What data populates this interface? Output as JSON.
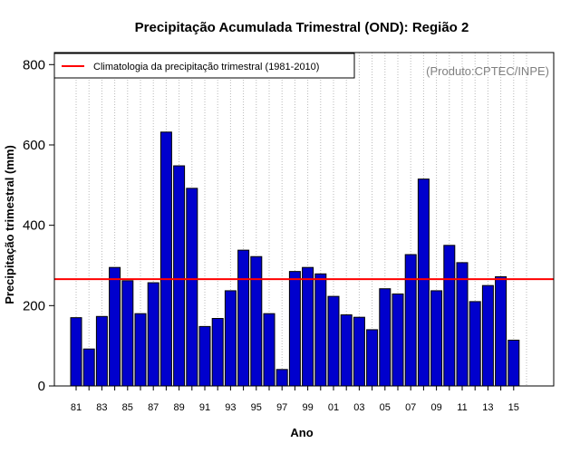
{
  "chart_data": {
    "type": "bar",
    "title": "Precipitação Acumulada Trimestral (OND): Região 2",
    "xlabel": "Ano",
    "ylabel": "Precipitação trimestral (mm)",
    "credit": "(Produto:CPTEC/INPE)",
    "categories": [
      "81",
      "82",
      "83",
      "84",
      "85",
      "86",
      "87",
      "88",
      "89",
      "90",
      "91",
      "92",
      "93",
      "94",
      "95",
      "96",
      "97",
      "98",
      "99",
      "00",
      "01",
      "02",
      "03",
      "04",
      "05",
      "06",
      "07",
      "08",
      "09",
      "10",
      "11",
      "12",
      "13",
      "14",
      "15"
    ],
    "xtick_labels": [
      "81",
      "83",
      "85",
      "87",
      "89",
      "91",
      "93",
      "95",
      "97",
      "99",
      "01",
      "03",
      "05",
      "07",
      "09",
      "11",
      "13",
      "15"
    ],
    "values": [
      170,
      92,
      173,
      295,
      262,
      180,
      257,
      632,
      548,
      492,
      148,
      168,
      237,
      338,
      322,
      180,
      41,
      285,
      295,
      279,
      223,
      177,
      171,
      140,
      242,
      229,
      327,
      515,
      237,
      350,
      307,
      210,
      250,
      272,
      114
    ],
    "yticks": [
      0,
      200,
      400,
      600,
      800
    ],
    "ylim": [
      0,
      830
    ],
    "climatology": {
      "value": 266,
      "label": "Climatologia da precipitação trimestral (1981-2010)",
      "color": "#ff0000"
    },
    "bar_color": "#0000cd",
    "grid": "vertical dotted",
    "legend_position": "top-left"
  }
}
